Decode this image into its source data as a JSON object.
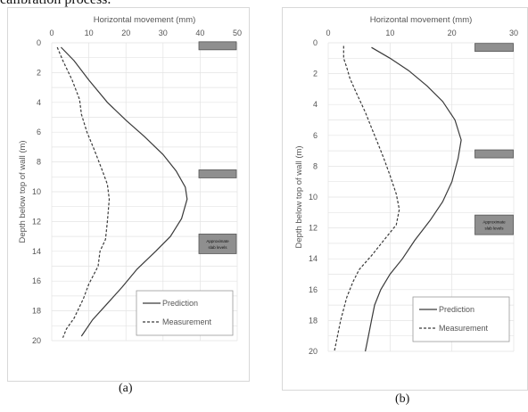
{
  "top_caption": "calibration process.",
  "chart_data": [
    {
      "type": "line",
      "panel_label": "(a)",
      "xlabel": "Horizontal movement (mm)",
      "ylabel": "Depth below top of wall (m)",
      "xlim": [
        0,
        50
      ],
      "ylim": [
        0,
        20
      ],
      "x_ticks": [
        "0",
        "10",
        "20",
        "30",
        "40",
        "50"
      ],
      "y_ticks": [
        "0",
        "2",
        "4",
        "6",
        "8",
        "10",
        "12",
        "14",
        "16",
        "18",
        "20"
      ],
      "grid": true,
      "legend_position": "bottom-right",
      "series": [
        {
          "name": "Prediction",
          "style": "solid",
          "points": [
            [
              2.5,
              0.3
            ],
            [
              6,
              1.2
            ],
            [
              10,
              2.5
            ],
            [
              15,
              4
            ],
            [
              20,
              5.2
            ],
            [
              25,
              6.3
            ],
            [
              30,
              7.5
            ],
            [
              33.5,
              8.6
            ],
            [
              36,
              9.7
            ],
            [
              36.5,
              10.5
            ],
            [
              35,
              11.8
            ],
            [
              32,
              13
            ],
            [
              28,
              14
            ],
            [
              23,
              15.2
            ],
            [
              19,
              16.4
            ],
            [
              15,
              17.5
            ],
            [
              11,
              18.6
            ],
            [
              8,
              19.7
            ]
          ]
        },
        {
          "name": "Measurement",
          "style": "dashed",
          "points": [
            [
              1.5,
              0.3
            ],
            [
              3,
              1.2
            ],
            [
              5.5,
              2.5
            ],
            [
              7.5,
              3.8
            ],
            [
              8,
              4.8
            ],
            [
              9.5,
              6
            ],
            [
              11.5,
              7.2
            ],
            [
              13.5,
              8.5
            ],
            [
              15,
              9.5
            ],
            [
              15.5,
              10.5
            ],
            [
              15,
              12
            ],
            [
              14.5,
              13.2
            ],
            [
              13,
              14
            ],
            [
              12.5,
              15
            ],
            [
              10,
              16.2
            ],
            [
              8.5,
              17.2
            ],
            [
              6,
              18.5
            ],
            [
              4,
              19.2
            ],
            [
              3,
              19.8
            ]
          ]
        }
      ],
      "slab_levels": [
        0.2,
        8.8,
        13.5
      ],
      "slab_annotation": "Approximate slab levels"
    },
    {
      "type": "line",
      "panel_label": "(b)",
      "xlabel": "Horizontal movement (mm)",
      "ylabel": "Depth below top of wall (m)",
      "xlim": [
        0,
        30
      ],
      "ylim": [
        0,
        20
      ],
      "x_ticks": [
        "0",
        "10",
        "20",
        "30"
      ],
      "y_ticks": [
        "0",
        "2",
        "4",
        "6",
        "8",
        "10",
        "12",
        "14",
        "16",
        "18",
        "20"
      ],
      "grid": true,
      "legend_position": "bottom-right",
      "series": [
        {
          "name": "Prediction",
          "style": "solid",
          "points": [
            [
              7,
              0.3
            ],
            [
              10,
              1
            ],
            [
              13,
              1.8
            ],
            [
              16,
              2.8
            ],
            [
              18.5,
              3.8
            ],
            [
              20.5,
              5
            ],
            [
              21.5,
              6.3
            ],
            [
              21,
              7.5
            ],
            [
              20,
              9
            ],
            [
              18.5,
              10.3
            ],
            [
              16.5,
              11.5
            ],
            [
              14,
              12.8
            ],
            [
              12,
              14
            ],
            [
              10,
              15
            ],
            [
              8.5,
              16
            ],
            [
              7.5,
              17
            ],
            [
              7,
              18
            ],
            [
              6.5,
              19
            ],
            [
              6,
              20
            ]
          ]
        },
        {
          "name": "Measurement",
          "style": "dashed",
          "points": [
            [
              2.5,
              0.2
            ],
            [
              2.5,
              1
            ],
            [
              3,
              1.6
            ],
            [
              3.5,
              2.3
            ],
            [
              4.5,
              3.2
            ],
            [
              6,
              4.5
            ],
            [
              7,
              5.5
            ],
            [
              8,
              6.5
            ],
            [
              9,
              7.5
            ],
            [
              10,
              8.6
            ],
            [
              11,
              9.8
            ],
            [
              11.5,
              10.8
            ],
            [
              11,
              11.8
            ],
            [
              9,
              12.8
            ],
            [
              7,
              13.8
            ],
            [
              5,
              14.7
            ],
            [
              4,
              15.5
            ],
            [
              3,
              16.5
            ],
            [
              2,
              18
            ],
            [
              1.5,
              19
            ],
            [
              1,
              20
            ]
          ]
        }
      ],
      "slab_levels": [
        0.3,
        7.2,
        11.8
      ],
      "slab_annotation": "Approximate slab levels"
    }
  ]
}
